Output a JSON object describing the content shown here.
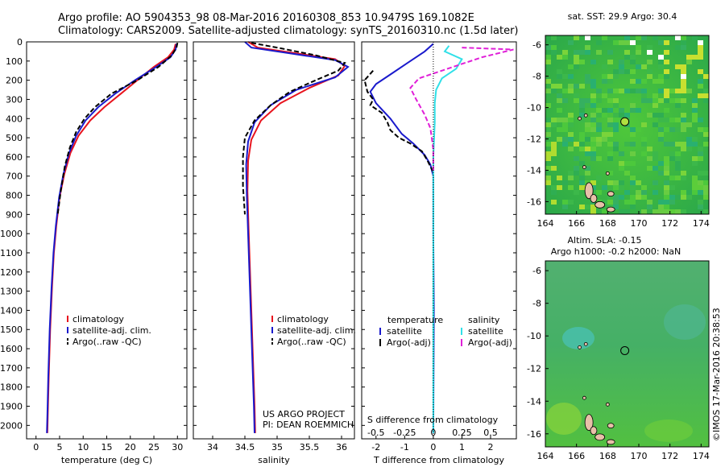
{
  "header": {
    "line1": "Argo profile: AO 5904353_98 08-Mar-2016 20160308_853 10.9479S 169.1082E",
    "line2": "Climatology: CARS2009. Satellite-adjusted climatology: synTS_20160310.nc (1.5d later)"
  },
  "credits": {
    "project": "US ARGO PROJECT",
    "pi": "PI: DEAN ROEMMICH"
  },
  "timestamp": "©IMOS 17-Mar-2016 20:38:53",
  "colors": {
    "climatology": "#e8141e",
    "satellite": "#1a1acc",
    "argo": "#000000",
    "sal_satellite": "#30e0e8",
    "sal_argo": "#e020d8"
  },
  "chart_data": [
    {
      "type": "line",
      "xlabel": "temperature (deg C)",
      "ylabel": "",
      "xlim": [
        -2,
        32
      ],
      "ylim": [
        2070,
        0
      ],
      "xticks": [
        0,
        5,
        10,
        15,
        20,
        25,
        30
      ],
      "yticks": [
        0,
        100,
        200,
        300,
        400,
        500,
        600,
        700,
        800,
        900,
        1000,
        1100,
        1200,
        1300,
        1400,
        1500,
        1600,
        1700,
        1800,
        1900,
        2000
      ],
      "legend": [
        "climatology",
        "satellite-adj. clim.",
        "Argo(..raw -QC)"
      ],
      "series": [
        {
          "name": "climatology",
          "points": [
            [
              29.6,
              10
            ],
            [
              29.3,
              40
            ],
            [
              28,
              80
            ],
            [
              25,
              130
            ],
            [
              21.5,
              200
            ],
            [
              18,
              270
            ],
            [
              14.5,
              340
            ],
            [
              11.5,
              410
            ],
            [
              9,
              490
            ],
            [
              7.3,
              580
            ],
            [
              6,
              690
            ],
            [
              5,
              810
            ],
            [
              4.3,
              960
            ],
            [
              3.8,
              1100
            ],
            [
              3.4,
              1280
            ],
            [
              3.0,
              1500
            ],
            [
              2.7,
              1750
            ],
            [
              2.5,
              1950
            ],
            [
              2.4,
              2040
            ]
          ]
        },
        {
          "name": "satellite-adj. clim.",
          "points": [
            [
              29.8,
              10
            ],
            [
              29.6,
              40
            ],
            [
              28.5,
              80
            ],
            [
              25.5,
              130
            ],
            [
              21,
              200
            ],
            [
              16.8,
              270
            ],
            [
              13.2,
              340
            ],
            [
              10.5,
              410
            ],
            [
              8.5,
              490
            ],
            [
              7,
              580
            ],
            [
              5.8,
              690
            ],
            [
              4.9,
              810
            ],
            [
              4.2,
              960
            ],
            [
              3.7,
              1100
            ],
            [
              3.3,
              1280
            ],
            [
              2.9,
              1500
            ],
            [
              2.6,
              1750
            ],
            [
              2.4,
              1950
            ],
            [
              2.3,
              2040
            ]
          ]
        },
        {
          "name": "Argo(..raw -QC)",
          "points": [
            [
              30,
              5
            ],
            [
              29.8,
              30
            ],
            [
              28.8,
              70
            ],
            [
              26,
              130
            ],
            [
              21.5,
              200
            ],
            [
              16,
              270
            ],
            [
              12.5,
              340
            ],
            [
              10.3,
              400
            ],
            [
              8.5,
              470
            ],
            [
              7.2,
              550
            ],
            [
              6.1,
              650
            ],
            [
              5.3,
              770
            ],
            [
              4.6,
              900
            ]
          ]
        }
      ]
    },
    {
      "type": "line",
      "xlabel": "salinity",
      "ylabel": "",
      "xlim": [
        33.7,
        36.2
      ],
      "ylim": [
        2070,
        0
      ],
      "xticks": [
        34,
        34.5,
        35,
        35.5,
        36
      ],
      "yticks": [
        0,
        100,
        200,
        300,
        400,
        500,
        600,
        700,
        800,
        900,
        1000,
        1100,
        1200,
        1300,
        1400,
        1500,
        1600,
        1700,
        1800,
        1900,
        2000
      ],
      "legend": [
        "climatology",
        "satellite-adj. clim.",
        "Argo(..raw -QC)"
      ],
      "series": [
        {
          "name": "climatology",
          "points": [
            [
              34.55,
              0
            ],
            [
              34.7,
              30
            ],
            [
              35.3,
              60
            ],
            [
              35.9,
              90
            ],
            [
              36.05,
              125
            ],
            [
              35.95,
              175
            ],
            [
              35.5,
              240
            ],
            [
              35.05,
              320
            ],
            [
              34.75,
              410
            ],
            [
              34.6,
              510
            ],
            [
              34.55,
              620
            ],
            [
              34.54,
              780
            ],
            [
              34.56,
              1000
            ],
            [
              34.59,
              1300
            ],
            [
              34.62,
              1600
            ],
            [
              34.65,
              1900
            ],
            [
              34.66,
              2040
            ]
          ]
        },
        {
          "name": "satellite-adj. clim.",
          "points": [
            [
              34.5,
              0
            ],
            [
              34.6,
              30
            ],
            [
              35.2,
              60
            ],
            [
              35.9,
              95
            ],
            [
              36.1,
              130
            ],
            [
              35.9,
              185
            ],
            [
              35.3,
              250
            ],
            [
              34.9,
              330
            ],
            [
              34.65,
              420
            ],
            [
              34.55,
              520
            ],
            [
              34.52,
              640
            ],
            [
              34.53,
              800
            ],
            [
              34.55,
              1000
            ],
            [
              34.58,
              1300
            ],
            [
              34.61,
              1600
            ],
            [
              34.64,
              1900
            ],
            [
              34.65,
              2040
            ]
          ]
        },
        {
          "name": "Argo(..raw -QC)",
          "points": [
            [
              34.6,
              5
            ],
            [
              35.0,
              30
            ],
            [
              35.6,
              70
            ],
            [
              36.05,
              110
            ],
            [
              35.95,
              150
            ],
            [
              35.6,
              200
            ],
            [
              35.2,
              260
            ],
            [
              34.9,
              330
            ],
            [
              34.65,
              410
            ],
            [
              34.5,
              500
            ],
            [
              34.47,
              600
            ],
            [
              34.47,
              750
            ],
            [
              34.5,
              900
            ]
          ]
        }
      ]
    },
    {
      "type": "line",
      "xlabel": "T difference from climatology",
      "top_xlabel": "S difference from climatology",
      "xlim": [
        -2.5,
        2.9
      ],
      "ylim": [
        2070,
        0
      ],
      "xticks": [
        -2,
        -1,
        0,
        1,
        2
      ],
      "top_xticks": [
        -0.5,
        -0.25,
        0,
        0.25,
        0.5
      ],
      "yticks": [
        0,
        100,
        200,
        300,
        400,
        500,
        600,
        700,
        800,
        900,
        1000,
        1100,
        1200,
        1300,
        1400,
        1500,
        1600,
        1700,
        1800,
        1900,
        2000
      ],
      "legend_headers": [
        "temperature",
        "salinity"
      ],
      "legend": [
        "satellite",
        "Argo(-adj)",
        "satellite",
        "Argo(-adj)"
      ],
      "series": [
        {
          "name": "satellite",
          "points": [
            [
              0,
              10
            ],
            [
              -0.3,
              50
            ],
            [
              -0.8,
              100
            ],
            [
              -1.5,
              170
            ],
            [
              -2,
              220
            ],
            [
              -2.2,
              260
            ],
            [
              -2,
              320
            ],
            [
              -1.5,
              400
            ],
            [
              -1.1,
              480
            ],
            [
              -0.7,
              530
            ],
            [
              -0.3,
              590
            ],
            [
              -0.1,
              640
            ],
            [
              0,
              700
            ],
            [
              0,
              1000
            ],
            [
              0.02,
              1400
            ],
            [
              0,
              2040
            ]
          ]
        },
        {
          "name": "Argo(-adj)",
          "points": [
            [
              -2.1,
              150
            ],
            [
              -2.4,
              200
            ],
            [
              -2.3,
              260
            ],
            [
              -2.1,
              300
            ],
            [
              -2.2,
              330
            ],
            [
              -1.8,
              370
            ],
            [
              -1.6,
              420
            ],
            [
              -1.5,
              460
            ],
            [
              -1.2,
              500
            ],
            [
              -0.8,
              530
            ],
            [
              -0.4,
              570
            ],
            [
              -0.2,
              620
            ],
            [
              0,
              680
            ]
          ]
        },
        {
          "name": "satellite",
          "points": [
            [
              0.55,
              20
            ],
            [
              0.4,
              50
            ],
            [
              1.0,
              90
            ],
            [
              0.8,
              140
            ],
            [
              0.3,
              190
            ],
            [
              0.1,
              250
            ],
            [
              0.05,
              320
            ],
            [
              0.05,
              420
            ],
            [
              0,
              600
            ],
            [
              0,
              1000
            ],
            [
              0,
              2040
            ]
          ]
        },
        {
          "name": "Argo(-adj)",
          "points": [
            [
              1.0,
              30
            ],
            [
              2.8,
              40
            ],
            [
              1.7,
              80
            ],
            [
              0.5,
              140
            ],
            [
              -0.5,
              190
            ],
            [
              -0.8,
              240
            ],
            [
              -0.6,
              300
            ],
            [
              -0.3,
              380
            ],
            [
              -0.1,
              450
            ],
            [
              0,
              560
            ],
            [
              0,
              680
            ]
          ]
        }
      ]
    },
    {
      "type": "heatmap",
      "title": "sat. SST: 29.9  Argo: 30.4",
      "xlim": [
        164,
        174.5
      ],
      "ylim": [
        -16.8,
        -5.4
      ],
      "xticks": [
        164,
        166,
        168,
        170,
        172,
        174
      ],
      "yticks": [
        -6,
        -8,
        -10,
        -12,
        -14,
        -16
      ],
      "marker": [
        169.1,
        -10.9
      ]
    },
    {
      "type": "heatmap",
      "title": "Altim. SLA: -0.15",
      "subtitle": "Argo h1000: -0.2 h2000: NaN",
      "xlim": [
        164,
        174.5
      ],
      "ylim": [
        -16.8,
        -5.4
      ],
      "xticks": [
        164,
        166,
        168,
        170,
        172,
        174
      ],
      "yticks": [
        -6,
        -8,
        -10,
        -12,
        -14,
        -16
      ],
      "marker": [
        169.1,
        -10.9
      ]
    }
  ]
}
